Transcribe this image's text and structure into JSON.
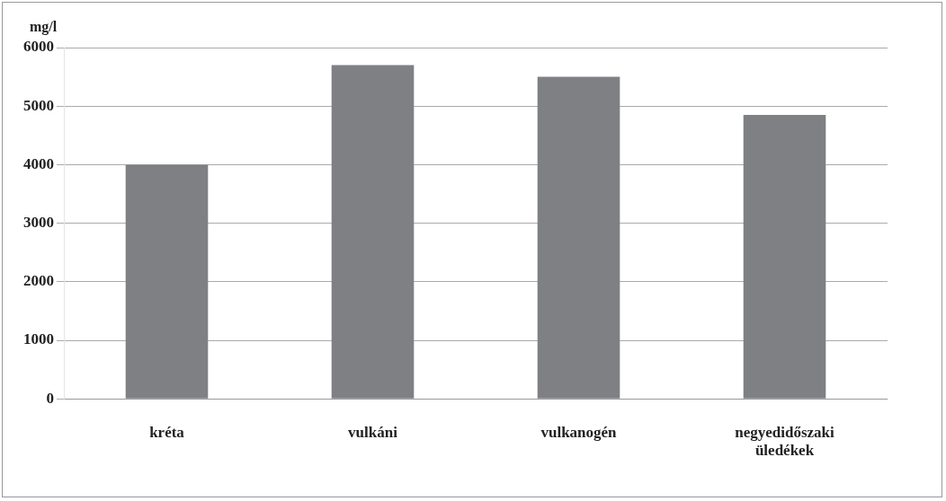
{
  "chart_data": {
    "type": "bar",
    "ylabel": "mg/l",
    "categories": [
      "kréta",
      "vulkáni",
      "vulkanogén",
      "negyedidőszaki üledékek"
    ],
    "values": [
      4000,
      5700,
      5500,
      4850
    ],
    "color": "#7f8083",
    "ylim": [
      0,
      6000
    ],
    "yticks": [
      0,
      1000,
      2000,
      3000,
      4000,
      5000,
      6000
    ],
    "grid": "y",
    "legend": false
  }
}
